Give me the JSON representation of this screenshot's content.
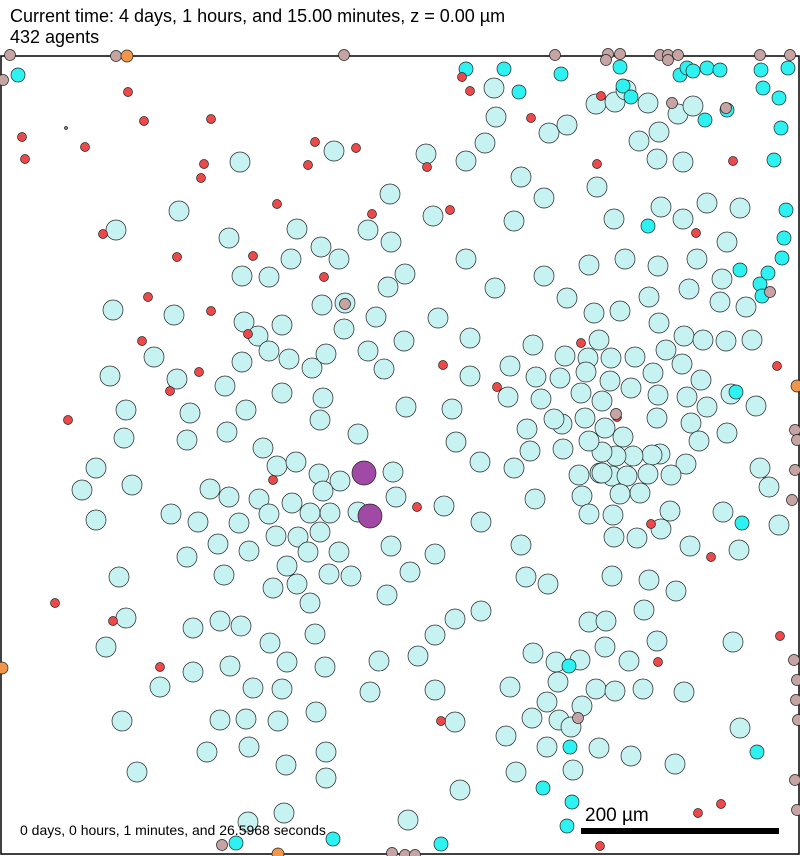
{
  "header": {
    "time_line": "Current time: 4 days, 1 hours, and 15.00 minutes, z = 0.00 µm",
    "agents_line": "432 agents"
  },
  "footer": {
    "elapsed": "0 days, 0 hours, 1 minutes, and 26.5968 seconds"
  },
  "scale_bar": {
    "label": "200 µm"
  },
  "colors": {
    "background": "#ffffff",
    "border": "#000000",
    "pale_cyan_cell": "#c6f2f2",
    "cyan_cell": "#2ef2f2",
    "red_cell": "#ec4a4a",
    "mauve_cell": "#c6a4a4",
    "orange_cell": "#f0964a",
    "purple_cell": "#a04aa6"
  },
  "agent_types": [
    "pale-cyan",
    "cyan",
    "red",
    "mauve",
    "orange",
    "purple"
  ]
}
